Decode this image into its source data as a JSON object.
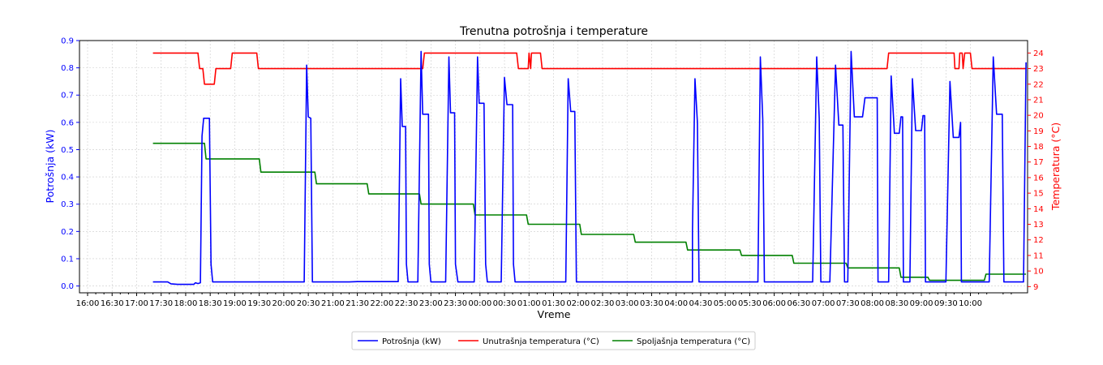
{
  "chart_data": {
    "type": "line",
    "title": "Trenutna potrošnja i temperature",
    "xlabel": "Vreme",
    "ylabel_left": "Potrošnja (kW)",
    "ylabel_right": "Temperatura (°C)",
    "x_range_min": [
      -60,
      1080
    ],
    "x_tick_labels": [
      "16:00",
      "16:30",
      "17:00",
      "17:30",
      "18:00",
      "18:30",
      "19:00",
      "19:30",
      "20:00",
      "20:30",
      "21:00",
      "21:30",
      "22:00",
      "22:30",
      "23:00",
      "23:30",
      "00:00",
      "00:30",
      "01:00",
      "01:30",
      "02:00",
      "02:30",
      "03:00",
      "03:30",
      "04:00",
      "04:30",
      "05:00",
      "05:30",
      "06:00",
      "06:30",
      "07:00",
      "07:30",
      "08:00",
      "08:30",
      "09:00",
      "09:30",
      "10:00"
    ],
    "ylim_left": [
      -0.025,
      0.9
    ],
    "yticks_left": [
      "0.0",
      "0.1",
      "0.2",
      "0.3",
      "0.4",
      "0.5",
      "0.6",
      "0.7",
      "0.8",
      "0.9"
    ],
    "ylim_right": [
      8.6,
      24.8
    ],
    "yticks_right": [
      "9",
      "10",
      "11",
      "12",
      "13",
      "14",
      "15",
      "16",
      "17",
      "18",
      "19",
      "20",
      "21",
      "22",
      "23",
      "24"
    ],
    "grid": true,
    "legend_position": "bottom-center",
    "series": [
      {
        "name": "Potrošnja (kW)",
        "axis": "left",
        "color": "#0000ff",
        "points": [
          [
            20,
            0.015
          ],
          [
            38,
            0.015
          ],
          [
            42,
            0.008
          ],
          [
            50,
            0.006
          ],
          [
            70,
            0.006
          ],
          [
            72,
            0.012
          ],
          [
            75,
            0.009
          ],
          [
            78,
            0.012
          ],
          [
            80,
            0.55
          ],
          [
            82,
            0.615
          ],
          [
            89,
            0.615
          ],
          [
            91,
            0.08
          ],
          [
            93,
            0.015
          ],
          [
            160,
            0.015
          ],
          [
            205,
            0.015
          ],
          [
            205,
            0.02
          ],
          [
            208,
            0.81
          ],
          [
            210,
            0.62
          ],
          [
            213,
            0.615
          ],
          [
            215,
            0.015
          ],
          [
            260,
            0.015
          ],
          [
            270,
            0.016
          ],
          [
            320,
            0.016
          ],
          [
            323,
            0.76
          ],
          [
            325,
            0.585
          ],
          [
            329,
            0.585
          ],
          [
            330,
            0.08
          ],
          [
            332,
            0.015
          ],
          [
            344,
            0.015
          ],
          [
            348,
            0.86
          ],
          [
            350,
            0.63
          ],
          [
            357,
            0.63
          ],
          [
            358,
            0.08
          ],
          [
            360,
            0.015
          ],
          [
            378,
            0.015
          ],
          [
            382,
            0.84
          ],
          [
            384,
            0.635
          ],
          [
            389,
            0.635
          ],
          [
            390,
            0.08
          ],
          [
            393,
            0.015
          ],
          [
            413,
            0.015
          ],
          [
            417,
            0.84
          ],
          [
            419,
            0.67
          ],
          [
            425,
            0.67
          ],
          [
            427,
            0.08
          ],
          [
            429,
            0.015
          ],
          [
            446,
            0.015
          ],
          [
            450,
            0.765
          ],
          [
            453,
            0.665
          ],
          [
            460,
            0.665
          ],
          [
            461,
            0.08
          ],
          [
            463,
            0.015
          ],
          [
            525,
            0.015
          ],
          [
            528,
            0.76
          ],
          [
            531,
            0.64
          ],
          [
            536,
            0.64
          ],
          [
            538,
            0.015
          ],
          [
            560,
            0.015
          ],
          [
            620,
            0.015
          ],
          [
            680,
            0.015
          ],
          [
            680,
            0.2
          ],
          [
            683,
            0.76
          ],
          [
            686,
            0.6
          ],
          [
            688,
            0.015
          ],
          [
            760,
            0.015
          ],
          [
            763,
            0.84
          ],
          [
            766,
            0.61
          ],
          [
            768,
            0.015
          ],
          [
            827,
            0.015
          ],
          [
            832,
            0.84
          ],
          [
            835,
            0.615
          ],
          [
            837,
            0.015
          ],
          [
            848,
            0.015
          ],
          [
            855,
            0.81
          ],
          [
            859,
            0.59
          ],
          [
            864,
            0.59
          ],
          [
            866,
            0.015
          ],
          [
            870,
            0.015
          ],
          [
            874,
            0.86
          ],
          [
            878,
            0.62
          ],
          [
            888,
            0.62
          ],
          [
            891,
            0.69
          ],
          [
            906,
            0.69
          ],
          [
            907,
            0.015
          ],
          [
            920,
            0.015
          ],
          [
            923,
            0.77
          ],
          [
            927,
            0.56
          ],
          [
            933,
            0.56
          ],
          [
            935,
            0.62
          ],
          [
            937,
            0.62
          ],
          [
            938,
            0.015
          ],
          [
            946,
            0.015
          ],
          [
            949,
            0.76
          ],
          [
            953,
            0.57
          ],
          [
            960,
            0.57
          ],
          [
            962,
            0.625
          ],
          [
            964,
            0.625
          ],
          [
            965,
            0.015
          ],
          [
            990,
            0.015
          ],
          [
            995,
            0.75
          ],
          [
            999,
            0.545
          ],
          [
            1006,
            0.545
          ],
          [
            1008,
            0.6
          ],
          [
            1009,
            0.015
          ],
          [
            1043,
            0.015
          ],
          [
            1048,
            0.84
          ],
          [
            1052,
            0.63
          ],
          [
            1059,
            0.63
          ],
          [
            1061,
            0.015
          ],
          [
            1085,
            0.015
          ],
          [
            1088,
            0.82
          ]
        ]
      },
      {
        "name": "Unutrašnja temperatura (°C)",
        "axis": "right",
        "color": "#ff0000",
        "points": [
          [
            20,
            24
          ],
          [
            75,
            24
          ],
          [
            77,
            23
          ],
          [
            81,
            23
          ],
          [
            83,
            22
          ],
          [
            95,
            22
          ],
          [
            97,
            23
          ],
          [
            115,
            23
          ],
          [
            117,
            24
          ],
          [
            147,
            24
          ],
          [
            149,
            23
          ],
          [
            350,
            23
          ],
          [
            352,
            24
          ],
          [
            465,
            24
          ],
          [
            467,
            23
          ],
          [
            479,
            23
          ],
          [
            480,
            24
          ],
          [
            482,
            23
          ],
          [
            483,
            24
          ],
          [
            494,
            24
          ],
          [
            496,
            23
          ],
          [
            918,
            23
          ],
          [
            920,
            24
          ],
          [
            1000,
            24
          ],
          [
            1001,
            23
          ],
          [
            1006,
            23
          ],
          [
            1007,
            24
          ],
          [
            1010,
            24
          ],
          [
            1011,
            23
          ],
          [
            1013,
            24
          ],
          [
            1020,
            24
          ],
          [
            1022,
            23
          ],
          [
            1088,
            23
          ]
        ]
      },
      {
        "name": "Spoljašnja temperatura (°C)",
        "axis": "right",
        "color": "#008000",
        "points": [
          [
            20,
            18.2
          ],
          [
            83,
            18.2
          ],
          [
            85,
            17.2
          ],
          [
            150,
            17.2
          ],
          [
            152,
            16.35
          ],
          [
            218,
            16.35
          ],
          [
            220,
            15.6
          ],
          [
            282,
            15.6
          ],
          [
            284,
            14.95
          ],
          [
            346,
            14.95
          ],
          [
            348,
            14.3
          ],
          [
            412,
            14.3
          ],
          [
            414,
            13.6
          ],
          [
            477,
            13.6
          ],
          [
            479,
            13
          ],
          [
            542,
            13
          ],
          [
            544,
            12.35
          ],
          [
            608,
            12.35
          ],
          [
            610,
            11.85
          ],
          [
            672,
            11.85
          ],
          [
            674,
            11.35
          ],
          [
            738,
            11.35
          ],
          [
            740,
            11
          ],
          [
            802,
            11
          ],
          [
            804,
            10.5
          ],
          [
            868,
            10.5
          ],
          [
            870,
            10.2
          ],
          [
            933,
            10.2
          ],
          [
            935,
            9.6
          ],
          [
            968,
            9.6
          ],
          [
            970,
            9.4
          ],
          [
            1037,
            9.4
          ],
          [
            1039,
            9.8
          ],
          [
            1088,
            9.8
          ]
        ]
      }
    ]
  }
}
